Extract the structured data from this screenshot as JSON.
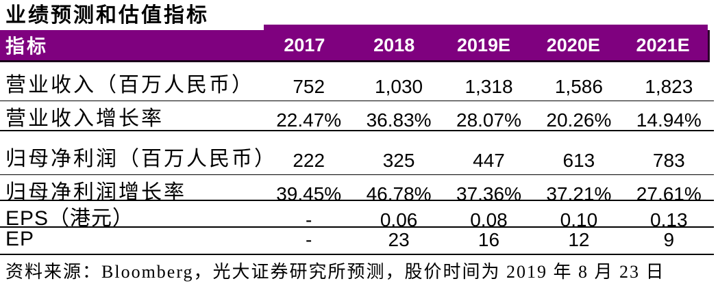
{
  "title": "业绩预测和估值指标",
  "table": {
    "header": {
      "label": "指标",
      "years": [
        "2017",
        "2018",
        "2019E",
        "2020E",
        "2021E"
      ]
    },
    "rows": [
      {
        "label": "营业收入（百万人民币）",
        "values": [
          "752",
          "1,030",
          "1,318",
          "1,586",
          "1,823"
        ]
      },
      {
        "label": "营业收入增长率",
        "values": [
          "22.47%",
          "36.83%",
          "28.07%",
          "20.26%",
          "14.94%"
        ]
      },
      {
        "label": "归母净利润（百万人民币）",
        "values": [
          "222",
          "325",
          "447",
          "613",
          "783"
        ]
      },
      {
        "label": "归母净利润增长率",
        "values": [
          "39.45%",
          "46.78%",
          "37.36%",
          "37.21%",
          "27.61%"
        ]
      },
      {
        "label": "EPS（港元）",
        "values": [
          "-",
          "0.06",
          "0.08",
          "0.10",
          "0.13"
        ]
      },
      {
        "label": "EP",
        "values": [
          "-",
          "23",
          "16",
          "12",
          "9"
        ]
      }
    ]
  },
  "footer": {
    "source": "资料来源：Bloomberg，光大证券研究所预测，股价时间为 2019 年 8 月 23 日"
  },
  "colors": {
    "header_bg": "#7F017F",
    "header_text": "#FFFFFF",
    "rule_line": "#000000",
    "body_text": "#000000"
  }
}
